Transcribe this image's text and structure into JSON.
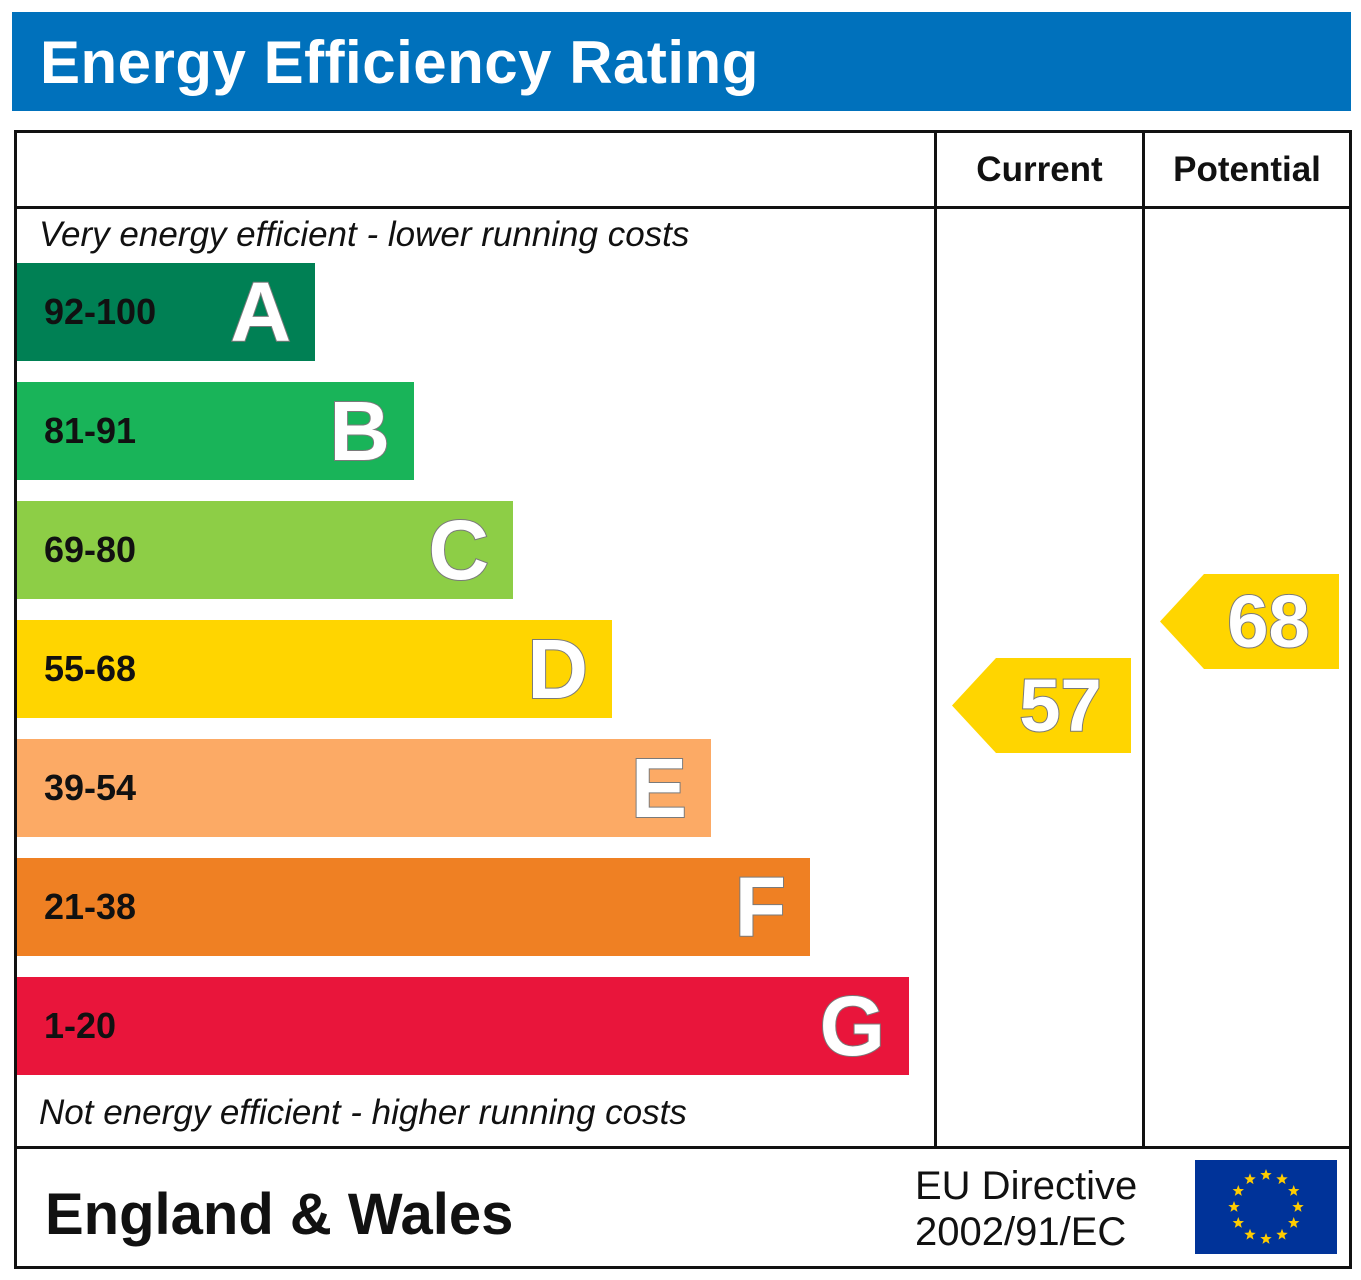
{
  "title": "Energy Efficiency Rating",
  "columns": {
    "current": "Current",
    "potential": "Potential"
  },
  "top_note": "Very energy efficient - lower running costs",
  "bottom_note": "Not energy efficient - higher running costs",
  "footer": {
    "region": "England & Wales",
    "directive_line1": "EU Directive",
    "directive_line2": "2002/91/EC",
    "flag_icon": "eu-flag-icon"
  },
  "chart_data": {
    "type": "bar",
    "categories": [
      "A",
      "B",
      "C",
      "D",
      "E",
      "F",
      "G"
    ],
    "bands": [
      {
        "letter": "A",
        "range": "92-100",
        "color": "#008054"
      },
      {
        "letter": "B",
        "range": "81-91",
        "color": "#19b459"
      },
      {
        "letter": "C",
        "range": "69-80",
        "color": "#8dce46"
      },
      {
        "letter": "D",
        "range": "55-68",
        "color": "#ffd500"
      },
      {
        "letter": "E",
        "range": "39-54",
        "color": "#fcaa65"
      },
      {
        "letter": "F",
        "range": "21-38",
        "color": "#ef8023"
      },
      {
        "letter": "G",
        "range": "1-20",
        "color": "#e9153b"
      }
    ],
    "current": {
      "value": 57,
      "band": "D",
      "color": "#ffd500"
    },
    "potential": {
      "value": 68,
      "band": "D",
      "color": "#ffd500"
    }
  },
  "colors": {
    "title_bar": "#0071bc",
    "flag_blue": "#003399",
    "flag_star": "#ffcc00"
  }
}
